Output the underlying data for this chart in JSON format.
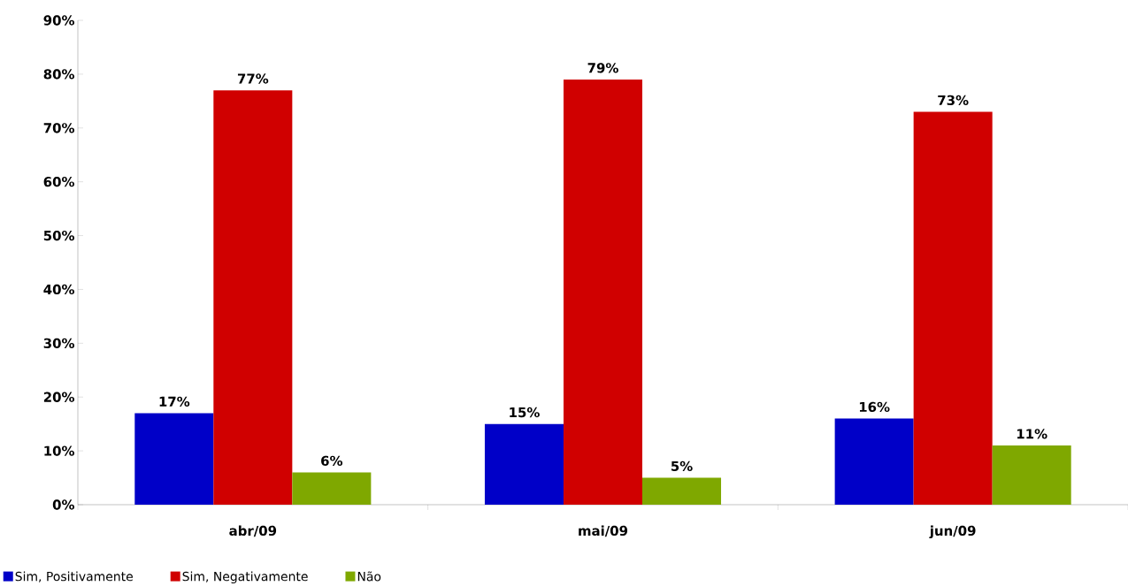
{
  "chart_data": {
    "type": "bar",
    "categories": [
      "abr/09",
      "mai/09",
      "jun/09"
    ],
    "series": [
      {
        "name": "Sim, Positivamente",
        "color": "#0000c8",
        "values": [
          17,
          15,
          16
        ],
        "value_labels": [
          "17%",
          "15%",
          "16%"
        ]
      },
      {
        "name": "Sim, Negativamente",
        "color": "#d00000",
        "values": [
          77,
          79,
          73
        ],
        "value_labels": [
          "77%",
          "79%",
          "73%"
        ]
      },
      {
        "name": "Não",
        "color": "#7fa800",
        "values": [
          6,
          5,
          11
        ],
        "value_labels": [
          "6%",
          "5%",
          "11%"
        ]
      }
    ],
    "ylim": [
      0,
      90
    ],
    "yticks": [
      {
        "value": 0,
        "label": "0%"
      },
      {
        "value": 10,
        "label": "10%"
      },
      {
        "value": 20,
        "label": "20%"
      },
      {
        "value": 30,
        "label": "30%"
      },
      {
        "value": 40,
        "label": "40%"
      },
      {
        "value": 50,
        "label": "50%"
      },
      {
        "value": 60,
        "label": "60%"
      },
      {
        "value": 70,
        "label": "70%"
      },
      {
        "value": 80,
        "label": "80%"
      },
      {
        "value": 90,
        "label": "90%"
      }
    ],
    "grid": false,
    "legend": "bottom left"
  }
}
